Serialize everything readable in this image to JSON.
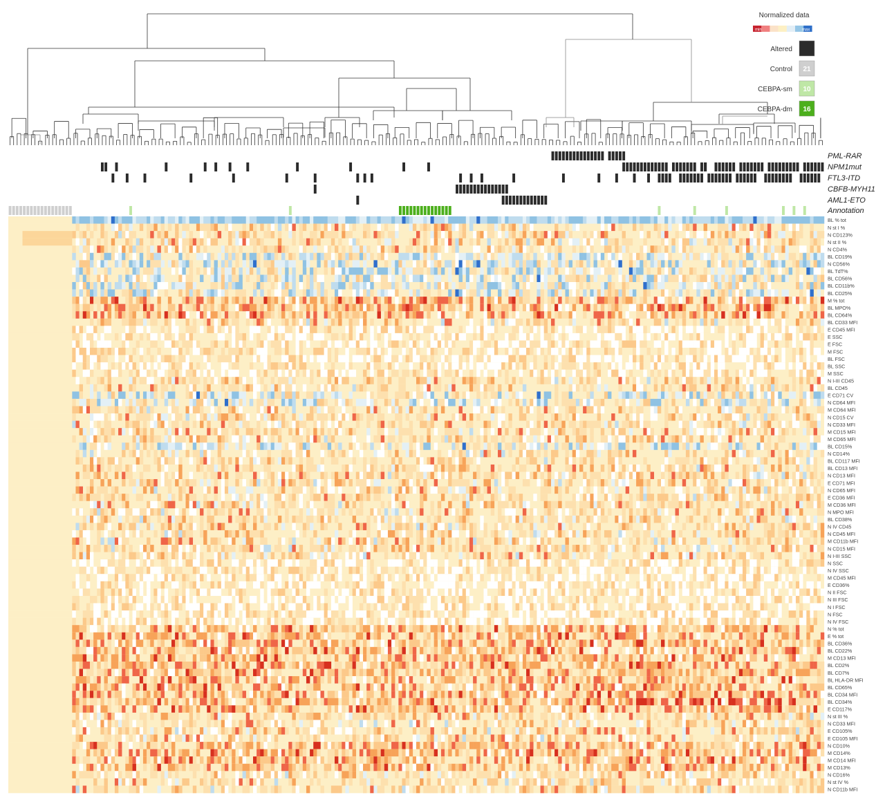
{
  "chart_data": {
    "type": "heatmap",
    "title": "",
    "legend": {
      "title": "Normalized data",
      "scale_min_label": "min",
      "scale_max_label": "max",
      "scale_colors": [
        "#c7232f",
        "#f08080",
        "#fbe2c8",
        "#fdf0c4",
        "#e2eef6",
        "#95c6e6",
        "#2e6fc9"
      ],
      "placement": "top-right",
      "entries": [
        {
          "label": "Altered",
          "color": "#2b2b2b",
          "count": ""
        },
        {
          "label": "Control",
          "color": "#cfcfcf",
          "count": "21"
        },
        {
          "label": "CEBPA-sm",
          "color": "#bfe7a6",
          "count": "10"
        },
        {
          "label": "CEBPA-dm",
          "color": "#4caf1c",
          "count": "16"
        }
      ]
    },
    "annotation_tracks": [
      "PML-RAR",
      "NPM1mut",
      "FTL3-ITD",
      "CBFB-MYH11",
      "AML1-ETO",
      "Annotation"
    ],
    "rows": [
      "BL % tot",
      "N st I %",
      "N CD123%",
      "N st II %",
      "N CD4%",
      "BL CD19%",
      "N CD56%",
      "BL TdT%",
      "BL CD56%",
      "BL CD11b%",
      "BL CD25%",
      "M % tot",
      "BL MPO%",
      "BL CD64%",
      "BL CD33 MFI",
      "E CD45 MFI",
      "E SSC",
      "E FSC",
      "M FSC",
      "BL FSC",
      "BL SSC",
      "M SSC",
      "N I-III CD45",
      "BL CD45",
      "E CD71 CV",
      "N CD64 MFI",
      "M CD64 MFI",
      "N CD15 CV",
      "N CD33 MFI",
      "M CD15 MFI",
      "M CD65 MFI",
      "BL CD15%",
      "N CD14%",
      "BL CD117 MFI",
      "BL CD13 MFI",
      "N CD13 MFI",
      "E CD71 MFI",
      "N CD65 MFI",
      "E CD36 MFI",
      "M CD36 MFI",
      "N MPO MFI",
      "BL CD38%",
      "N IV CD45",
      "N CD45 MFI",
      "M CD11b MFI",
      "N CD15 MFI",
      "N I-III SSC",
      "N SSC",
      "N IV SSC",
      "M CD45 MFI",
      "E CD36%",
      "N II FSC",
      "N III FSC",
      "N I FSC",
      "N FSC",
      "N IV FSC",
      "N % tot",
      "E % tot",
      "BL CD36%",
      "BL CD22%",
      "M CD13 MFI",
      "BL CD2%",
      "BL CD7%",
      "BL HLA-DR MFI",
      "BL CD65%",
      "BL CD34 MFI",
      "BL CD34%",
      "E CD117%",
      "N st III %",
      "N CD33 MFI",
      "E CD105%",
      "E CD105 MFI",
      "N CD10%",
      "M CD14%",
      "M CD14 MFI",
      "M CD13%",
      "N CD16%",
      "N st IV %",
      "N CD11b MFI"
    ],
    "n_columns": 230,
    "value_range": [
      -1,
      1
    ],
    "grid": false
  }
}
